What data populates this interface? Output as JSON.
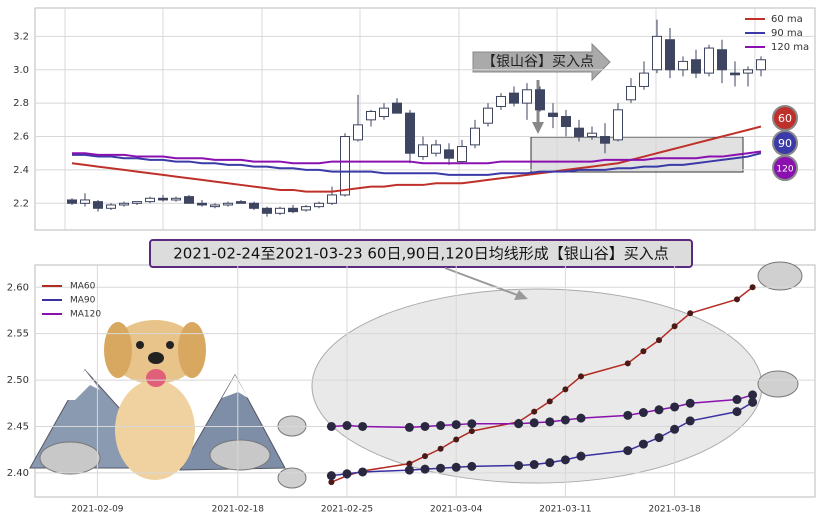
{
  "chart_data": [
    {
      "type": "candlestick",
      "legend": "upper right",
      "grid": true,
      "ylim": [
        2.04,
        3.37
      ],
      "yticks": [
        {
          "value": 2.2,
          "label": "2.2"
        },
        {
          "value": 2.4,
          "label": "2.4"
        },
        {
          "value": 2.6,
          "label": "2.6"
        },
        {
          "value": 2.8,
          "label": "2.8"
        },
        {
          "value": 3.0,
          "label": "3.0"
        },
        {
          "value": 3.2,
          "label": "3.2"
        }
      ],
      "annotation": "【银山谷】买入点",
      "open": [
        2.22,
        2.2,
        2.21,
        2.17,
        2.19,
        2.2,
        2.21,
        2.23,
        2.22,
        2.24,
        2.2,
        2.18,
        2.19,
        2.21,
        2.2,
        2.17,
        2.14,
        2.17,
        2.16,
        2.18,
        2.2,
        2.25,
        2.58,
        2.7,
        2.72,
        2.8,
        2.74,
        2.48,
        2.5,
        2.52,
        2.45,
        2.55,
        2.68,
        2.78,
        2.86,
        2.8,
        2.88,
        2.74,
        2.72,
        2.65,
        2.6,
        2.6,
        2.58,
        2.82,
        2.9,
        3.0,
        3.18,
        3.0,
        3.06,
        2.98,
        3.12,
        2.98,
        2.98,
        3.0
      ],
      "high": [
        2.23,
        2.26,
        2.22,
        2.2,
        2.21,
        2.21,
        2.24,
        2.25,
        2.24,
        2.25,
        2.22,
        2.2,
        2.21,
        2.22,
        2.21,
        2.18,
        2.18,
        2.19,
        2.19,
        2.21,
        2.3,
        2.62,
        2.85,
        2.76,
        2.8,
        2.83,
        2.76,
        2.6,
        2.58,
        2.56,
        2.58,
        2.7,
        2.8,
        2.86,
        2.9,
        2.92,
        2.9,
        2.8,
        2.76,
        2.7,
        2.66,
        2.68,
        2.8,
        2.95,
        3.05,
        3.3,
        3.25,
        3.08,
        3.12,
        3.15,
        3.18,
        3.05,
        3.02,
        3.08
      ],
      "low": [
        2.19,
        2.18,
        2.15,
        2.16,
        2.18,
        2.19,
        2.2,
        2.21,
        2.21,
        2.2,
        2.18,
        2.17,
        2.18,
        2.2,
        2.16,
        2.12,
        2.13,
        2.14,
        2.15,
        2.17,
        2.19,
        2.24,
        2.57,
        2.66,
        2.7,
        2.74,
        2.44,
        2.46,
        2.48,
        2.43,
        2.44,
        2.53,
        2.66,
        2.76,
        2.78,
        2.7,
        2.75,
        2.65,
        2.6,
        2.57,
        2.58,
        2.5,
        2.57,
        2.8,
        2.88,
        2.98,
        2.95,
        2.96,
        2.95,
        2.96,
        2.92,
        2.9,
        2.9,
        2.96
      ],
      "close": [
        2.2,
        2.22,
        2.17,
        2.19,
        2.2,
        2.21,
        2.23,
        2.22,
        2.23,
        2.2,
        2.19,
        2.19,
        2.2,
        2.2,
        2.17,
        2.14,
        2.17,
        2.15,
        2.18,
        2.2,
        2.25,
        2.6,
        2.67,
        2.75,
        2.77,
        2.74,
        2.5,
        2.55,
        2.55,
        2.47,
        2.54,
        2.65,
        2.77,
        2.84,
        2.8,
        2.88,
        2.76,
        2.72,
        2.66,
        2.6,
        2.62,
        2.56,
        2.76,
        2.9,
        2.98,
        3.2,
        3.0,
        3.05,
        2.98,
        3.13,
        3.0,
        2.97,
        3.0,
        3.06
      ],
      "series": [
        {
          "name": "60 ma",
          "color": "#c0302a",
          "end_label": "60",
          "values": [
            2.44,
            2.43,
            2.42,
            2.41,
            2.4,
            2.39,
            2.38,
            2.37,
            2.36,
            2.35,
            2.34,
            2.33,
            2.32,
            2.31,
            2.3,
            2.29,
            2.28,
            2.28,
            2.27,
            2.27,
            2.27,
            2.28,
            2.29,
            2.3,
            2.3,
            2.31,
            2.31,
            2.31,
            2.32,
            2.32,
            2.32,
            2.33,
            2.34,
            2.35,
            2.36,
            2.37,
            2.38,
            2.39,
            2.4,
            2.41,
            2.42,
            2.43,
            2.44,
            2.46,
            2.48,
            2.5,
            2.52,
            2.54,
            2.56,
            2.58,
            2.6,
            2.62,
            2.64,
            2.66
          ]
        },
        {
          "name": "90 ma",
          "color": "#3a3aa8",
          "end_label": "90",
          "values": [
            2.49,
            2.49,
            2.48,
            2.48,
            2.47,
            2.47,
            2.46,
            2.46,
            2.45,
            2.45,
            2.44,
            2.44,
            2.43,
            2.43,
            2.42,
            2.42,
            2.41,
            2.41,
            2.4,
            2.4,
            2.39,
            2.39,
            2.39,
            2.39,
            2.38,
            2.38,
            2.38,
            2.38,
            2.38,
            2.37,
            2.37,
            2.37,
            2.37,
            2.38,
            2.38,
            2.38,
            2.39,
            2.39,
            2.39,
            2.4,
            2.4,
            2.4,
            2.41,
            2.41,
            2.42,
            2.42,
            2.43,
            2.43,
            2.44,
            2.45,
            2.46,
            2.47,
            2.48,
            2.5
          ]
        },
        {
          "name": "120 ma",
          "color": "#8a10b0",
          "end_label": "120",
          "values": [
            2.5,
            2.5,
            2.49,
            2.49,
            2.49,
            2.48,
            2.48,
            2.48,
            2.47,
            2.47,
            2.47,
            2.46,
            2.46,
            2.46,
            2.45,
            2.45,
            2.45,
            2.44,
            2.44,
            2.44,
            2.45,
            2.45,
            2.45,
            2.45,
            2.45,
            2.45,
            2.45,
            2.44,
            2.44,
            2.44,
            2.44,
            2.44,
            2.44,
            2.45,
            2.45,
            2.45,
            2.45,
            2.45,
            2.45,
            2.45,
            2.45,
            2.46,
            2.46,
            2.46,
            2.46,
            2.47,
            2.47,
            2.47,
            2.47,
            2.48,
            2.48,
            2.49,
            2.5,
            2.51
          ]
        }
      ]
    },
    {
      "type": "line",
      "title": "2021-02-24至2021-03-23 60日,90日,120日均线形成【银山谷】买入点",
      "legend": "upper left",
      "grid": true,
      "x": [
        "2021-02-24",
        "2021-02-25",
        "2021-02-26",
        "2021-03-01",
        "2021-03-02",
        "2021-03-03",
        "2021-03-04",
        "2021-03-05",
        "2021-03-08",
        "2021-03-09",
        "2021-03-10",
        "2021-03-11",
        "2021-03-12",
        "2021-03-15",
        "2021-03-16",
        "2021-03-17",
        "2021-03-18",
        "2021-03-19",
        "2021-03-22",
        "2021-03-23"
      ],
      "xlim": [
        "2021-02-05",
        "2021-03-27"
      ],
      "xticks": [
        "2021-02-09",
        "2021-02-18",
        "2021-02-25",
        "2021-03-04",
        "2021-03-11",
        "2021-03-18"
      ],
      "ylim": [
        2.374,
        2.624
      ],
      "yticks": [
        {
          "value": 2.4,
          "label": "2.40"
        },
        {
          "value": 2.45,
          "label": "2.45"
        },
        {
          "value": 2.5,
          "label": "2.50"
        },
        {
          "value": 2.55,
          "label": "2.55"
        },
        {
          "value": 2.6,
          "label": "2.60"
        }
      ],
      "series": [
        {
          "name": "MA60",
          "color": "#b22a22",
          "values": [
            2.39,
            2.397,
            2.402,
            2.41,
            2.418,
            2.426,
            2.436,
            2.445,
            2.455,
            2.466,
            2.477,
            2.49,
            2.504,
            2.518,
            2.531,
            2.543,
            2.558,
            2.572,
            2.587,
            2.6
          ]
        },
        {
          "name": "MA90",
          "color": "#3a30a0",
          "values": [
            2.397,
            2.399,
            2.401,
            2.403,
            2.404,
            2.405,
            2.406,
            2.407,
            2.408,
            2.409,
            2.411,
            2.414,
            2.418,
            2.424,
            2.431,
            2.438,
            2.447,
            2.456,
            2.466,
            2.476
          ]
        },
        {
          "name": "MA120",
          "color": "#8a10b0",
          "values": [
            2.45,
            2.451,
            2.45,
            2.449,
            2.45,
            2.451,
            2.452,
            2.453,
            2.453,
            2.454,
            2.455,
            2.457,
            2.459,
            2.462,
            2.465,
            2.468,
            2.471,
            2.475,
            2.479,
            2.484
          ]
        }
      ]
    }
  ]
}
